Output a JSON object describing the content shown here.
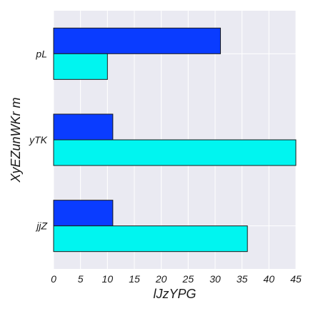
{
  "chart_data": {
    "type": "bar",
    "orientation": "horizontal",
    "categories": [
      "pL",
      "yTK",
      "jjZ"
    ],
    "series": [
      {
        "values": [
          31,
          11,
          11
        ],
        "color": "#0a3cff"
      },
      {
        "values": [
          10,
          45,
          36
        ],
        "color": "#00f5f0"
      }
    ],
    "xlabel": "lJzYPG",
    "ylabel": "XyEZunWKr m",
    "xlim": [
      0,
      45
    ],
    "xticks": [
      0,
      5,
      10,
      15,
      20,
      25,
      30,
      35,
      40,
      45
    ],
    "grid": true,
    "background": "#eaeaf2",
    "grid_color": "#ffffff",
    "bar_edge_color": "#1a1a1a"
  }
}
